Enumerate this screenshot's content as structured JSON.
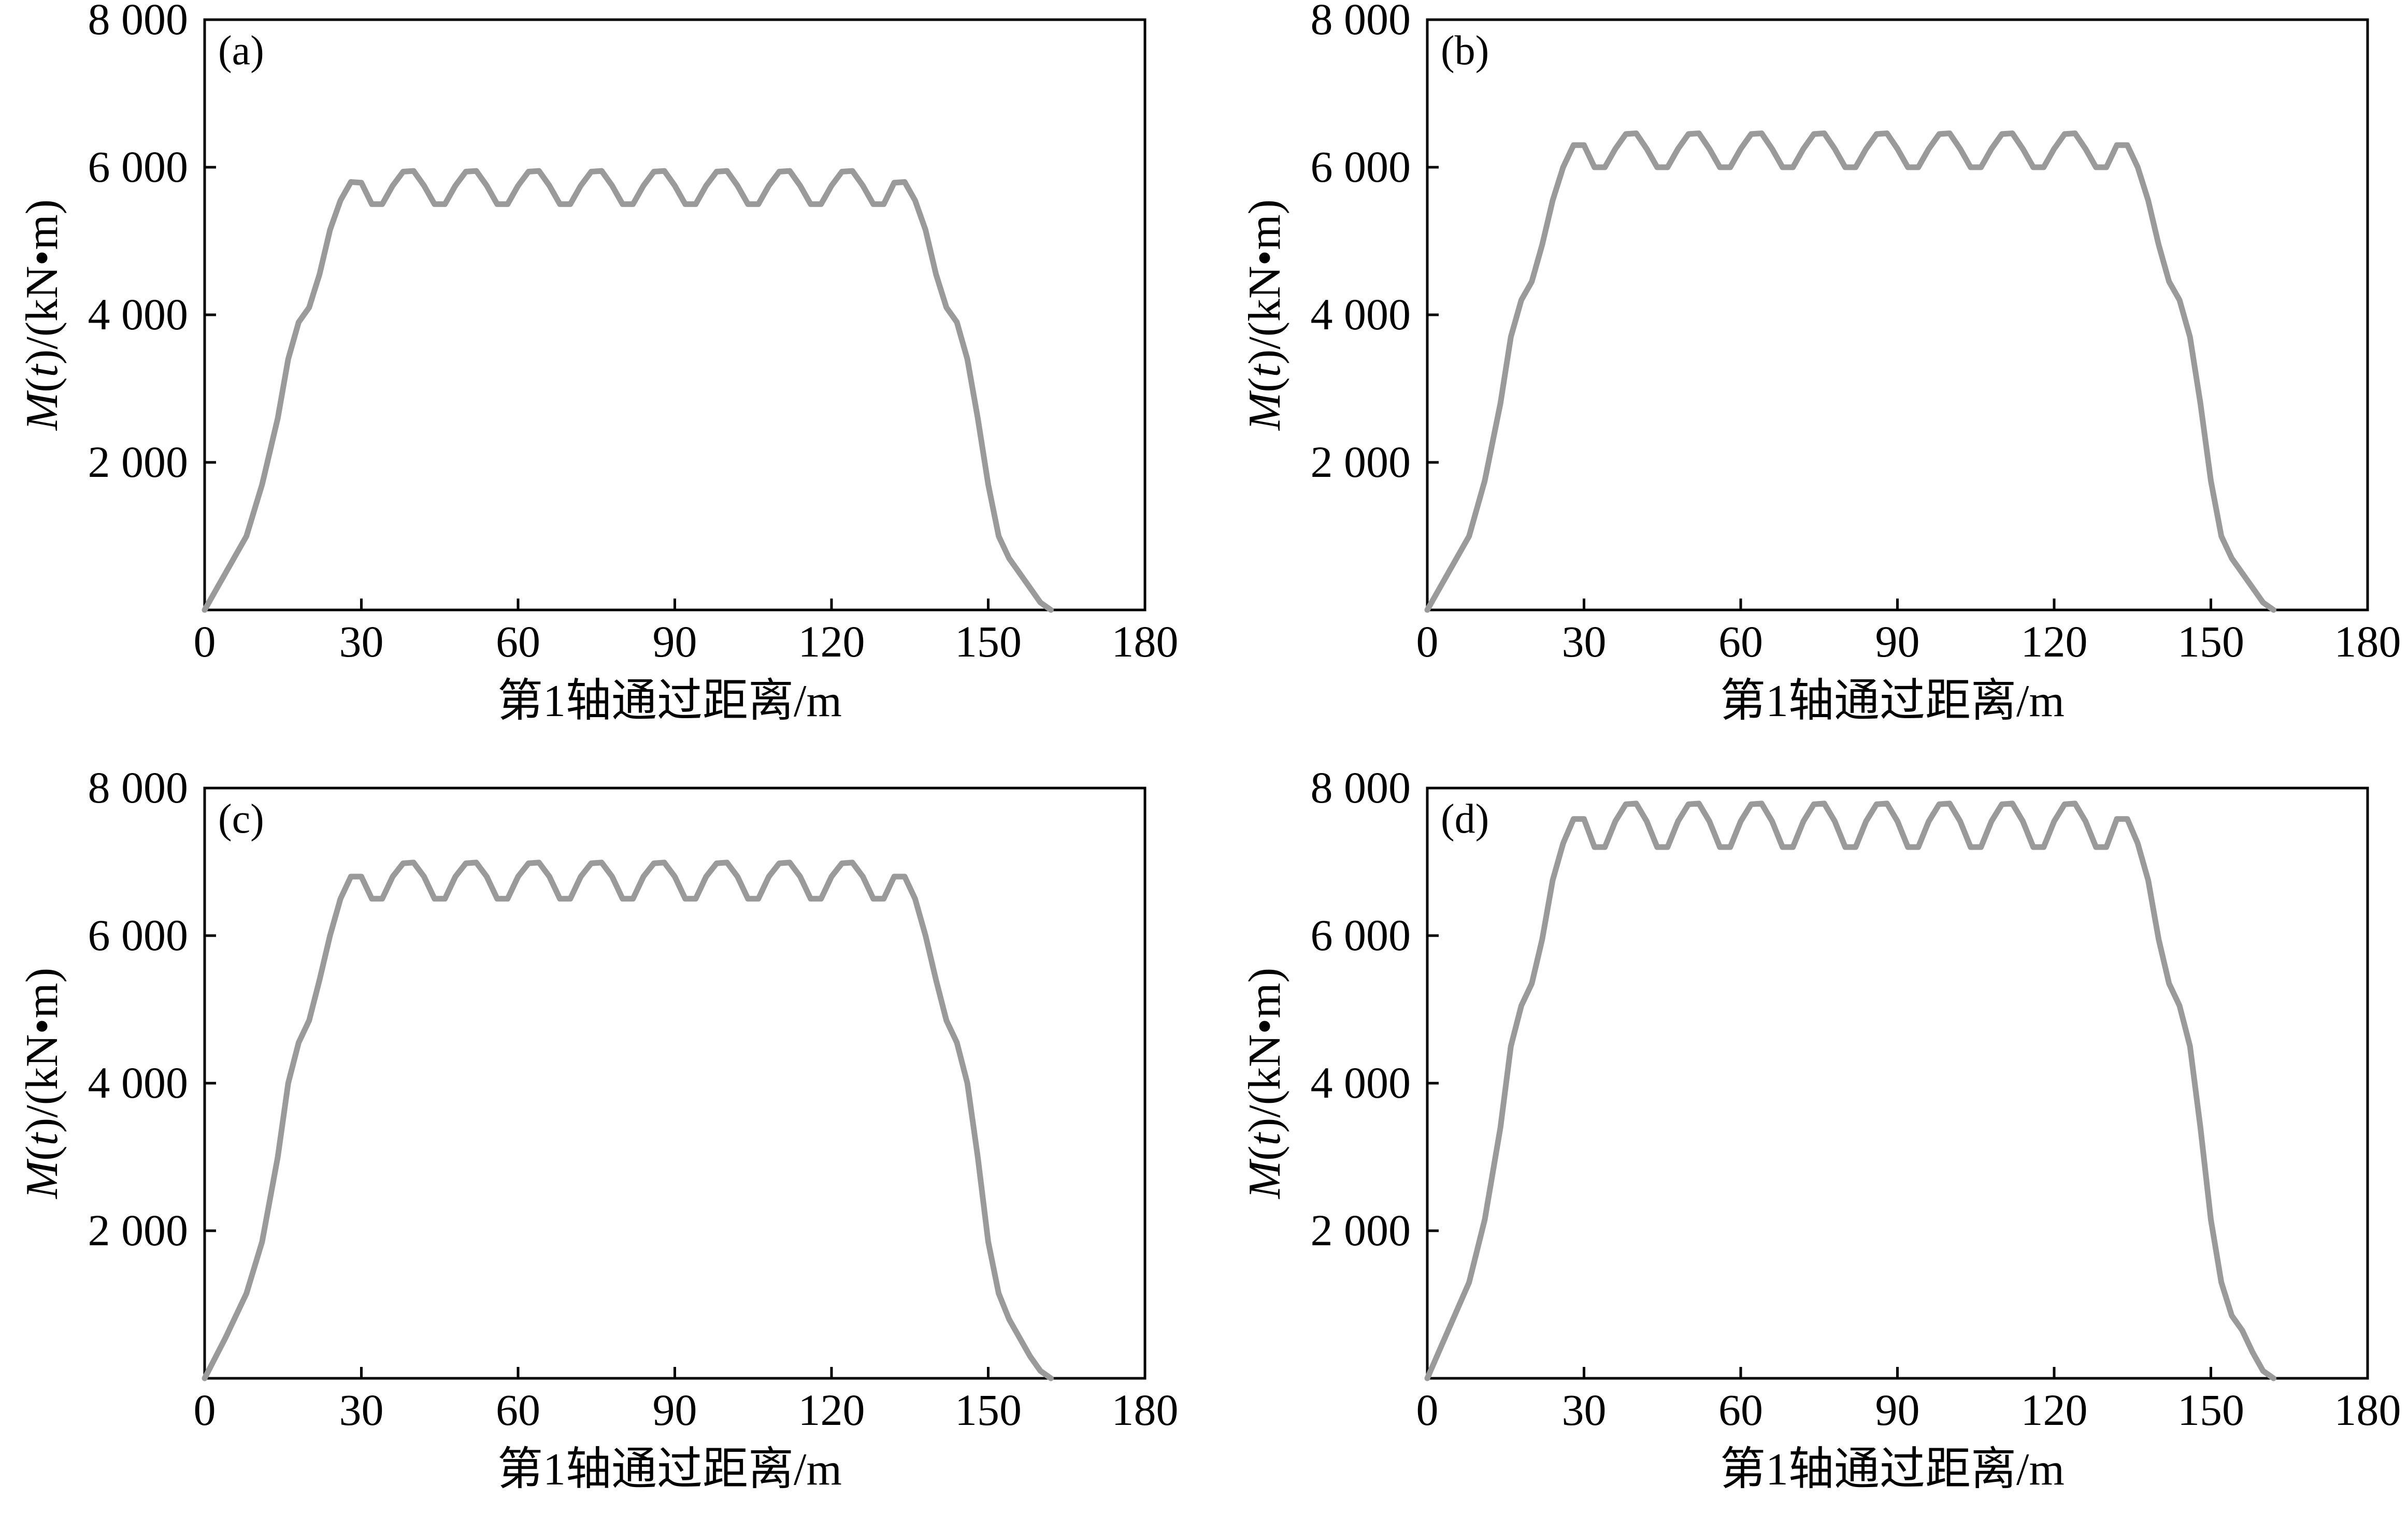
{
  "chart_data": [
    {
      "type": "line",
      "panel_label": "(a)",
      "xlabel": "第1轴通过距离/m",
      "ylabel_parts": [
        "M",
        "(",
        "t",
        ")/(kN•m)"
      ],
      "xlim": [
        0,
        180
      ],
      "ylim": [
        0,
        8000
      ],
      "x_ticks": [
        0,
        30,
        60,
        90,
        120,
        150,
        180
      ],
      "x_tick_labels": [
        "0",
        "30",
        "60",
        "90",
        "120",
        "150",
        "180"
      ],
      "y_ticks": [
        2000,
        4000,
        6000,
        8000
      ],
      "y_tick_labels": [
        "2 000",
        "4 000",
        "6 000",
        "8 000"
      ],
      "series": [
        {
          "color": "#9a9a9a",
          "x": [
            0,
            4,
            8,
            11,
            14,
            16,
            18,
            20,
            22,
            24,
            26,
            28,
            30,
            32,
            34,
            36,
            38,
            40,
            42,
            44,
            46,
            48,
            50,
            52,
            54,
            56,
            58,
            60,
            62,
            64,
            66,
            68,
            70,
            72,
            74,
            76,
            78,
            80,
            82,
            84,
            86,
            88,
            90,
            92,
            94,
            96,
            98,
            100,
            102,
            104,
            106,
            108,
            110,
            112,
            114,
            116,
            118,
            120,
            122,
            124,
            126,
            128,
            130,
            132,
            134,
            136,
            138,
            140,
            142,
            144,
            146,
            148,
            150,
            152,
            154,
            156,
            158,
            160,
            162
          ],
          "y": [
            0,
            500,
            1000,
            1700,
            2600,
            3400,
            3900,
            4100,
            4550,
            5150,
            5550,
            5800,
            5790,
            5500,
            5500,
            5750,
            5940,
            5950,
            5750,
            5500,
            5500,
            5750,
            5940,
            5950,
            5750,
            5500,
            5500,
            5750,
            5940,
            5950,
            5750,
            5500,
            5500,
            5750,
            5940,
            5950,
            5750,
            5500,
            5500,
            5750,
            5940,
            5950,
            5750,
            5500,
            5500,
            5750,
            5940,
            5950,
            5750,
            5500,
            5500,
            5750,
            5940,
            5950,
            5750,
            5500,
            5500,
            5750,
            5940,
            5950,
            5750,
            5500,
            5500,
            5790,
            5800,
            5550,
            5150,
            4550,
            4100,
            3900,
            3400,
            2600,
            1700,
            1000,
            700,
            500,
            300,
            100,
            0
          ]
        }
      ]
    },
    {
      "type": "line",
      "panel_label": "(b)",
      "xlabel": "第1轴通过距离/m",
      "ylabel_parts": [
        "M",
        "(",
        "t",
        ")/(kN•m)"
      ],
      "xlim": [
        0,
        180
      ],
      "ylim": [
        0,
        8000
      ],
      "x_ticks": [
        0,
        30,
        60,
        90,
        120,
        150,
        180
      ],
      "x_tick_labels": [
        "0",
        "30",
        "60",
        "90",
        "120",
        "150",
        "180"
      ],
      "y_ticks": [
        2000,
        4000,
        6000,
        8000
      ],
      "y_tick_labels": [
        "2 000",
        "4 000",
        "6 000",
        "8 000"
      ],
      "series": [
        {
          "color": "#9a9a9a",
          "x": [
            0,
            4,
            8,
            11,
            14,
            16,
            18,
            20,
            22,
            24,
            26,
            28,
            30,
            32,
            34,
            36,
            38,
            40,
            42,
            44,
            46,
            48,
            50,
            52,
            54,
            56,
            58,
            60,
            62,
            64,
            66,
            68,
            70,
            72,
            74,
            76,
            78,
            80,
            82,
            84,
            86,
            88,
            90,
            92,
            94,
            96,
            98,
            100,
            102,
            104,
            106,
            108,
            110,
            112,
            114,
            116,
            118,
            120,
            122,
            124,
            126,
            128,
            130,
            132,
            134,
            136,
            138,
            140,
            142,
            144,
            146,
            148,
            150,
            152,
            154,
            156,
            158,
            160,
            162
          ],
          "y": [
            0,
            500,
            1000,
            1750,
            2800,
            3700,
            4200,
            4450,
            4950,
            5550,
            6000,
            6300,
            6300,
            6000,
            6000,
            6250,
            6450,
            6460,
            6250,
            6000,
            6000,
            6250,
            6450,
            6460,
            6250,
            6000,
            6000,
            6250,
            6450,
            6460,
            6250,
            6000,
            6000,
            6250,
            6450,
            6460,
            6250,
            6000,
            6000,
            6250,
            6450,
            6460,
            6250,
            6000,
            6000,
            6250,
            6450,
            6460,
            6250,
            6000,
            6000,
            6250,
            6450,
            6460,
            6250,
            6000,
            6000,
            6250,
            6450,
            6460,
            6250,
            6000,
            6000,
            6300,
            6300,
            6000,
            5550,
            4950,
            4450,
            4200,
            3700,
            2800,
            1750,
            1000,
            700,
            500,
            300,
            100,
            0
          ]
        }
      ]
    },
    {
      "type": "line",
      "panel_label": "(c)",
      "xlabel": "第1轴通过距离/m",
      "ylabel_parts": [
        "M",
        "(",
        "t",
        ")/(kN•m)"
      ],
      "xlim": [
        0,
        180
      ],
      "ylim": [
        0,
        8000
      ],
      "x_ticks": [
        0,
        30,
        60,
        90,
        120,
        150,
        180
      ],
      "x_tick_labels": [
        "0",
        "30",
        "60",
        "90",
        "120",
        "150",
        "180"
      ],
      "y_ticks": [
        2000,
        4000,
        6000,
        8000
      ],
      "y_tick_labels": [
        "2 000",
        "4 000",
        "6 000",
        "8 000"
      ],
      "series": [
        {
          "color": "#9a9a9a",
          "x": [
            0,
            4,
            8,
            11,
            14,
            16,
            18,
            20,
            22,
            24,
            26,
            28,
            30,
            32,
            34,
            36,
            38,
            40,
            42,
            44,
            46,
            48,
            50,
            52,
            54,
            56,
            58,
            60,
            62,
            64,
            66,
            68,
            70,
            72,
            74,
            76,
            78,
            80,
            82,
            84,
            86,
            88,
            90,
            92,
            94,
            96,
            98,
            100,
            102,
            104,
            106,
            108,
            110,
            112,
            114,
            116,
            118,
            120,
            122,
            124,
            126,
            128,
            130,
            132,
            134,
            136,
            138,
            140,
            142,
            144,
            146,
            148,
            150,
            152,
            154,
            156,
            158,
            160,
            162
          ],
          "y": [
            0,
            550,
            1150,
            1850,
            3000,
            4000,
            4550,
            4850,
            5400,
            6000,
            6500,
            6800,
            6800,
            6500,
            6500,
            6800,
            6980,
            6990,
            6800,
            6500,
            6500,
            6800,
            6980,
            6990,
            6800,
            6500,
            6500,
            6800,
            6980,
            6990,
            6800,
            6500,
            6500,
            6800,
            6980,
            6990,
            6800,
            6500,
            6500,
            6800,
            6980,
            6990,
            6800,
            6500,
            6500,
            6800,
            6980,
            6990,
            6800,
            6500,
            6500,
            6800,
            6980,
            6990,
            6800,
            6500,
            6500,
            6800,
            6980,
            6990,
            6800,
            6500,
            6500,
            6800,
            6800,
            6500,
            6000,
            5400,
            4850,
            4550,
            4000,
            3000,
            1850,
            1150,
            800,
            550,
            300,
            100,
            0
          ]
        }
      ]
    },
    {
      "type": "line",
      "panel_label": "(d)",
      "xlabel": "第1轴通过距离/m",
      "ylabel_parts": [
        "M",
        "(",
        "t",
        ")/(kN•m)"
      ],
      "xlim": [
        0,
        180
      ],
      "ylim": [
        0,
        8000
      ],
      "x_ticks": [
        0,
        30,
        60,
        90,
        120,
        150,
        180
      ],
      "x_tick_labels": [
        "0",
        "30",
        "60",
        "90",
        "120",
        "150",
        "180"
      ],
      "y_ticks": [
        2000,
        4000,
        6000,
        8000
      ],
      "y_tick_labels": [
        "2 000",
        "4 000",
        "6 000",
        "8 000"
      ],
      "series": [
        {
          "color": "#9a9a9a",
          "x": [
            0,
            4,
            8,
            11,
            14,
            16,
            18,
            20,
            22,
            24,
            26,
            28,
            30,
            32,
            34,
            36,
            38,
            40,
            42,
            44,
            46,
            48,
            50,
            52,
            54,
            56,
            58,
            60,
            62,
            64,
            66,
            68,
            70,
            72,
            74,
            76,
            78,
            80,
            82,
            84,
            86,
            88,
            90,
            92,
            94,
            96,
            98,
            100,
            102,
            104,
            106,
            108,
            110,
            112,
            114,
            116,
            118,
            120,
            122,
            124,
            126,
            128,
            130,
            132,
            134,
            136,
            138,
            140,
            142,
            144,
            146,
            148,
            150,
            152,
            154,
            156,
            158,
            160,
            162
          ],
          "y": [
            0,
            650,
            1300,
            2150,
            3400,
            4500,
            5050,
            5350,
            5950,
            6750,
            7250,
            7580,
            7580,
            7200,
            7200,
            7550,
            7780,
            7790,
            7550,
            7200,
            7200,
            7550,
            7780,
            7790,
            7550,
            7200,
            7200,
            7550,
            7780,
            7790,
            7550,
            7200,
            7200,
            7550,
            7780,
            7790,
            7550,
            7200,
            7200,
            7550,
            7780,
            7790,
            7550,
            7200,
            7200,
            7550,
            7780,
            7790,
            7550,
            7200,
            7200,
            7550,
            7780,
            7790,
            7550,
            7200,
            7200,
            7550,
            7780,
            7790,
            7550,
            7200,
            7200,
            7580,
            7580,
            7250,
            6750,
            5950,
            5350,
            5050,
            4500,
            3400,
            2150,
            1300,
            850,
            650,
            350,
            100,
            0
          ]
        }
      ]
    }
  ]
}
